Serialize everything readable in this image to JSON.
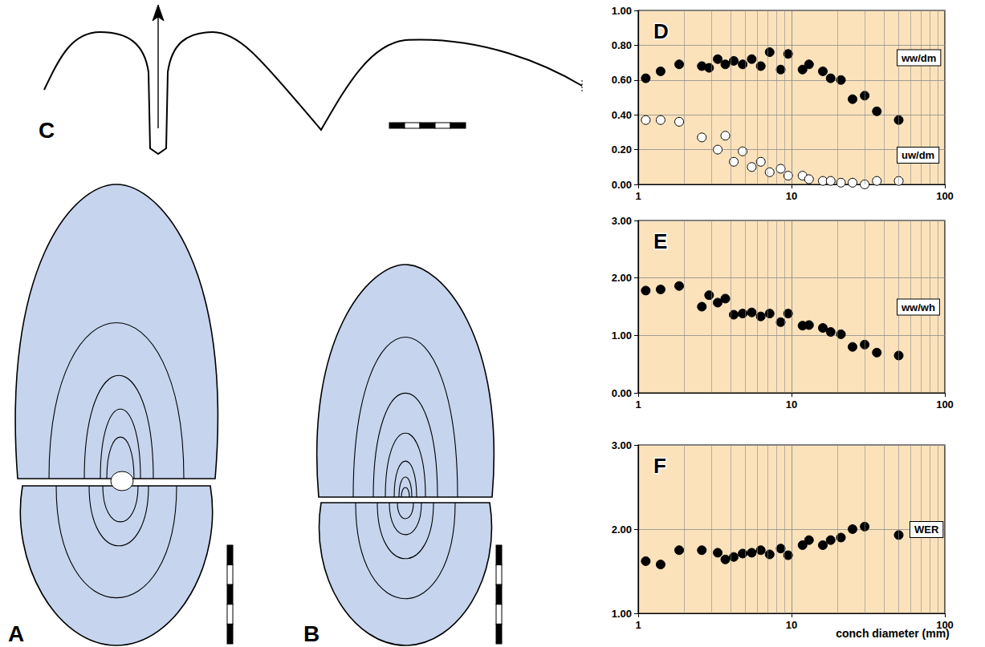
{
  "chart_data": [
    {
      "type": "scatter",
      "title": "D",
      "log": "x",
      "grid": true,
      "xlim": [
        1,
        100
      ],
      "xticks": [
        1,
        10,
        100
      ],
      "ylim": [
        0,
        1
      ],
      "yticks": [
        {
          "value": 0,
          "label": "0.00"
        },
        {
          "value": 0.2,
          "label": "0.20"
        },
        {
          "value": 0.4,
          "label": "0.40"
        },
        {
          "value": 0.6,
          "label": "0.60"
        },
        {
          "value": 0.8,
          "label": "0.80"
        },
        {
          "value": 1,
          "label": "1.00"
        }
      ],
      "series": [
        {
          "name": "ww/dm",
          "color": "#000000",
          "marker": "circle",
          "x": [
            1.12,
            1.4,
            1.85,
            2.6,
            2.9,
            3.3,
            3.7,
            4.2,
            4.8,
            5.5,
            6.3,
            7.2,
            8.5,
            9.5,
            11.8,
            13,
            16,
            18,
            21,
            25,
            30,
            36,
            50
          ],
          "values": [
            0.61,
            0.65,
            0.69,
            0.68,
            0.67,
            0.72,
            0.69,
            0.71,
            0.69,
            0.72,
            0.68,
            0.76,
            0.66,
            0.75,
            0.66,
            0.69,
            0.65,
            0.61,
            0.6,
            0.49,
            0.51,
            0.42,
            0.37
          ]
        },
        {
          "name": "uw/dm",
          "color": "#ffffff",
          "marker": "circle",
          "x": [
            1.12,
            1.4,
            1.85,
            2.6,
            3.3,
            3.7,
            4.2,
            4.8,
            5.5,
            6.3,
            7.2,
            8.5,
            9.5,
            11.8,
            13,
            16,
            18,
            21,
            25,
            30,
            36,
            50
          ],
          "values": [
            0.37,
            0.37,
            0.36,
            0.27,
            0.2,
            0.28,
            0.13,
            0.19,
            0.1,
            0.13,
            0.07,
            0.09,
            0.05,
            0.05,
            0.03,
            0.02,
            0.02,
            0.01,
            0.01,
            0.0,
            0.02,
            0.02
          ]
        }
      ]
    },
    {
      "type": "scatter",
      "title": "E",
      "log": "x",
      "grid": true,
      "xlim": [
        1,
        100
      ],
      "xticks": [
        1,
        10,
        100
      ],
      "ylim": [
        0,
        3
      ],
      "yticks": [
        {
          "value": 0,
          "label": "0.00"
        },
        {
          "value": 1,
          "label": "1.00"
        },
        {
          "value": 2,
          "label": "2.00"
        },
        {
          "value": 3,
          "label": "3.00"
        }
      ],
      "series": [
        {
          "name": "ww/wh",
          "color": "#000000",
          "marker": "circle",
          "x": [
            1.12,
            1.4,
            1.85,
            2.6,
            2.9,
            3.3,
            3.7,
            4.2,
            4.8,
            5.5,
            6.3,
            7.2,
            8.5,
            9.5,
            11.8,
            13,
            16,
            18,
            21,
            25,
            30,
            36,
            50
          ],
          "values": [
            1.78,
            1.8,
            1.86,
            1.5,
            1.7,
            1.57,
            1.64,
            1.36,
            1.38,
            1.4,
            1.33,
            1.38,
            1.23,
            1.38,
            1.17,
            1.18,
            1.13,
            1.06,
            1.02,
            0.8,
            0.84,
            0.7,
            0.65
          ]
        }
      ]
    },
    {
      "type": "scatter",
      "title": "F",
      "log": "x",
      "grid": true,
      "xlabel": "conch diameter (mm)",
      "xlim": [
        1,
        100
      ],
      "xticks": [
        1,
        10,
        100
      ],
      "ylim": [
        1,
        3
      ],
      "yticks": [
        {
          "value": 1,
          "label": "1.00"
        },
        {
          "value": 2,
          "label": "2.00"
        },
        {
          "value": 3,
          "label": "3.00"
        }
      ],
      "series": [
        {
          "name": "WER",
          "color": "#000000",
          "marker": "circle",
          "x": [
            1.12,
            1.4,
            1.85,
            2.6,
            3.3,
            3.7,
            4.2,
            4.8,
            5.5,
            6.3,
            7.2,
            8.5,
            9.5,
            11.8,
            13,
            16,
            18,
            21,
            25,
            30,
            50
          ],
          "values": [
            1.62,
            1.58,
            1.75,
            1.75,
            1.72,
            1.64,
            1.67,
            1.71,
            1.72,
            1.75,
            1.7,
            1.77,
            1.69,
            1.81,
            1.87,
            1.81,
            1.87,
            1.9,
            2.0,
            2.03,
            1.93
          ]
        }
      ]
    }
  ],
  "diagram_panels": [
    "A",
    "B",
    "C"
  ]
}
